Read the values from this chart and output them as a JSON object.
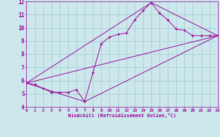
{
  "xlabel": "Windchill (Refroidissement éolien,°C)",
  "bg_color": "#cce8ec",
  "grid_color": "#a8cdd4",
  "line_color": "#990099",
  "xmin": 0,
  "xmax": 23,
  "ymin": 4,
  "ymax": 12,
  "yticks": [
    4,
    5,
    6,
    7,
    8,
    9,
    10,
    11,
    12
  ],
  "xticks": [
    0,
    1,
    2,
    3,
    4,
    5,
    6,
    7,
    8,
    9,
    10,
    11,
    12,
    13,
    14,
    15,
    16,
    17,
    18,
    19,
    20,
    21,
    22,
    23
  ],
  "series1_x": [
    0,
    1,
    2,
    3,
    4,
    5,
    6,
    7,
    8,
    9,
    10,
    11,
    12,
    13,
    14,
    15,
    16,
    17,
    18,
    19,
    20,
    21,
    22,
    23
  ],
  "series1_y": [
    5.8,
    5.7,
    5.4,
    5.1,
    5.1,
    5.1,
    5.3,
    4.4,
    6.6,
    8.8,
    9.3,
    9.5,
    9.6,
    10.6,
    11.3,
    11.9,
    11.1,
    10.6,
    9.9,
    9.8,
    9.4,
    9.4,
    9.4,
    9.4
  ],
  "series2_x": [
    0,
    23
  ],
  "series2_y": [
    5.8,
    9.4
  ],
  "series3_x": [
    0,
    7,
    23
  ],
  "series3_y": [
    5.8,
    4.4,
    9.4
  ],
  "series4_x": [
    0,
    15,
    23
  ],
  "series4_y": [
    5.8,
    11.9,
    9.4
  ]
}
